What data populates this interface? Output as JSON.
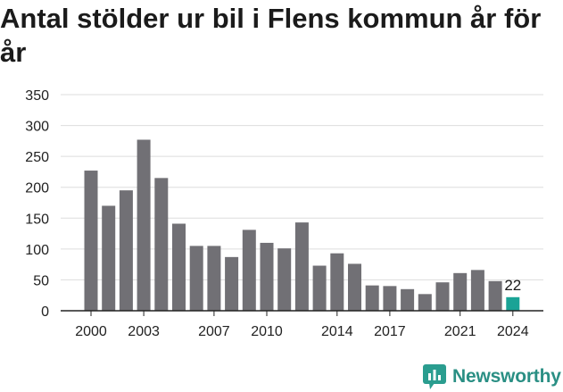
{
  "title": "Antal stölder ur bil i Flens kommun år för år",
  "brand": {
    "name": "Newsworthy",
    "icon": "bar-chart-speech-bubble-icon",
    "color": "#2a9d8f"
  },
  "chart_data": {
    "type": "bar",
    "categories": [
      "2000",
      "2001",
      "2002",
      "2003",
      "2004",
      "2005",
      "2006",
      "2007",
      "2008",
      "2009",
      "2010",
      "2011",
      "2012",
      "2013",
      "2014",
      "2015",
      "2016",
      "2017",
      "2018",
      "2019",
      "2020",
      "2021",
      "2022",
      "2023",
      "2024"
    ],
    "values": [
      227,
      170,
      195,
      277,
      215,
      141,
      105,
      105,
      87,
      131,
      110,
      101,
      143,
      73,
      93,
      76,
      41,
      40,
      35,
      27,
      46,
      61,
      66,
      48,
      22
    ],
    "x_tick_labels": [
      "2000",
      "2003",
      "2007",
      "2010",
      "2014",
      "2017",
      "2021",
      "2024"
    ],
    "y_ticks": [
      0,
      50,
      100,
      150,
      200,
      250,
      300,
      350
    ],
    "ylim": [
      0,
      350
    ],
    "grid": true,
    "highlight": {
      "category": "2024",
      "label": "22"
    },
    "colors": {
      "bar": "#717075",
      "highlight": "#1aa396",
      "grid": "#dddddd",
      "axis": "#222222"
    }
  }
}
